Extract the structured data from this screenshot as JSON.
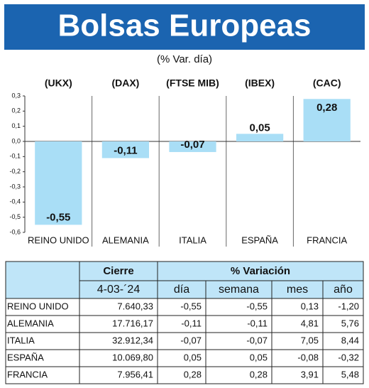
{
  "chart_data": {
    "type": "bar",
    "title": "Bolsas Europeas",
    "subtitle": "(% Var. día)",
    "indices": [
      "(UKX)",
      "(DAX)",
      "(FTSE MIB)",
      "(IBEX)",
      "(CAC)"
    ],
    "categories": [
      "REINO UNIDO",
      "ALEMANIA",
      "ITALIA",
      "ESPAÑA",
      "FRANCIA"
    ],
    "values": [
      -0.55,
      -0.11,
      -0.07,
      0.05,
      0.28
    ],
    "value_labels": [
      "-0,55",
      "-0,11",
      "-0,07",
      "0,05",
      "0,28"
    ],
    "color": "#a9def6",
    "ylim": [
      -0.6,
      0.3
    ],
    "yticks": [
      {
        "value": 0.3,
        "label": "0,3"
      },
      {
        "value": 0.2,
        "label": "0,2"
      },
      {
        "value": 0.1,
        "label": "0,1"
      },
      {
        "value": 0,
        "label": "0,0"
      },
      {
        "value": -0.1,
        "label": "-0,1"
      },
      {
        "value": -0.2,
        "label": "-0,2"
      },
      {
        "value": -0.3,
        "label": "-0,3"
      },
      {
        "value": -0.4,
        "label": "-0,4"
      },
      {
        "value": -0.5,
        "label": "-0,5"
      },
      {
        "value": -0.6,
        "label": "-0,6"
      }
    ]
  },
  "table": {
    "header": [
      "Cierre",
      "% Variación"
    ],
    "subheader": [
      "4-03-´24",
      "día",
      "semana",
      "mes",
      "año"
    ],
    "rows": [
      [
        "REINO UNIDO",
        "7.640,33",
        "-0,55",
        "-0,55",
        "0,13",
        "-1,20"
      ],
      [
        "ALEMANIA",
        "17.716,17",
        "-0,11",
        "-0,11",
        "4,81",
        "5,76"
      ],
      [
        "ITALIA",
        "32.912,34",
        "-0,07",
        "-0,07",
        "7,05",
        "8,44"
      ],
      [
        "ESPAÑA",
        "10.069,80",
        "0,05",
        "0,05",
        "-0,08",
        "-0,32"
      ],
      [
        "FRANCIA",
        "7.956,41",
        "0,28",
        "0,28",
        "3,91",
        "5,48"
      ]
    ]
  }
}
